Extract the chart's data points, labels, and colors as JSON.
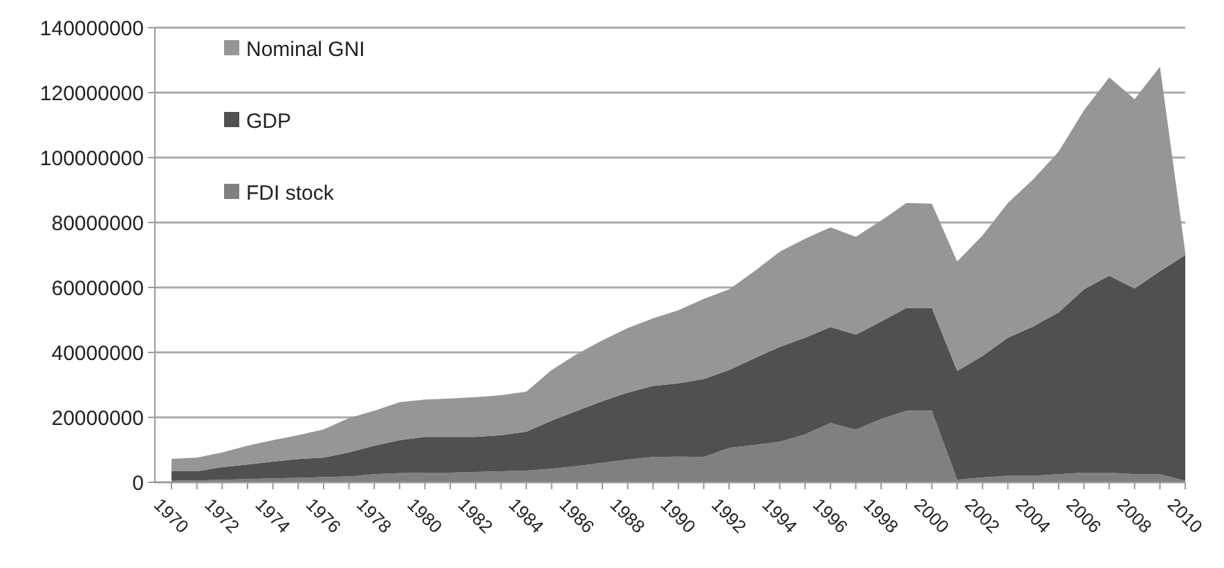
{
  "chart_data": {
    "type": "area",
    "stacked": true,
    "grid": "y",
    "legend": "top left",
    "categories": [
      "1970",
      null,
      "1972",
      null,
      "1974",
      null,
      "1976",
      null,
      "1978",
      null,
      "1980",
      null,
      "1982",
      null,
      "1984",
      null,
      "1986",
      null,
      "1988",
      null,
      "1990",
      null,
      "1992",
      null,
      "1994",
      null,
      "1996",
      null,
      "1998",
      null,
      "2000",
      null,
      "2002",
      null,
      "2004",
      null,
      "2006",
      null,
      "2008",
      null,
      "2010"
    ],
    "ylim": [
      0,
      140000000
    ],
    "yticks": [
      0,
      20000000,
      40000000,
      60000000,
      80000000,
      100000000,
      120000000,
      140000000
    ],
    "series": [
      {
        "name": "FDI stock",
        "color": "#808080",
        "values": [
          500000,
          600000,
          800000,
          1000000,
          1200000,
          1400000,
          1600000,
          1800000,
          2500000,
          2800000,
          3000000,
          3000000,
          3200000,
          3400000,
          3600000,
          4200000,
          5000000,
          6000000,
          7000000,
          7800000,
          7900000,
          7800000,
          10600000,
          11500000,
          12500000,
          14800000,
          18300000,
          16200000,
          19500000,
          22100000,
          22100000,
          800000,
          1500000,
          2000000,
          2000000,
          2500000,
          3000000,
          3000000,
          2500000,
          2500000,
          500000
        ]
      },
      {
        "name": "GDP",
        "color": "#505050",
        "values": [
          2900000,
          2800000,
          3900000,
          4500000,
          5200000,
          5800000,
          6000000,
          7400000,
          8800000,
          10200000,
          11000000,
          11000000,
          10800000,
          11100000,
          12000000,
          14800000,
          17000000,
          19000000,
          20600000,
          21900000,
          22600000,
          24000000,
          24000000,
          26700000,
          29200000,
          29700000,
          29500000,
          29300000,
          30000000,
          31600000,
          31600000,
          33500000,
          37400000,
          42500000,
          46000000,
          49800000,
          56400000,
          60600000,
          57200000,
          62500000,
          69500000
        ]
      },
      {
        "name": "Nominal GNI",
        "color": "#969696",
        "values": [
          3800000,
          4200000,
          4500000,
          5800000,
          6600000,
          7300000,
          8700000,
          10600000,
          10700000,
          11700000,
          11500000,
          11800000,
          12200000,
          12300000,
          12300000,
          15600000,
          17500000,
          18700000,
          19900000,
          20800000,
          22500000,
          24700000,
          24800000,
          26800000,
          29300000,
          30500000,
          30700000,
          30100000,
          31100000,
          32300000,
          32100000,
          33700000,
          37100000,
          41500000,
          45300000,
          49500000,
          55100000,
          61100000,
          58300000,
          63000000,
          800000
        ]
      }
    ]
  }
}
